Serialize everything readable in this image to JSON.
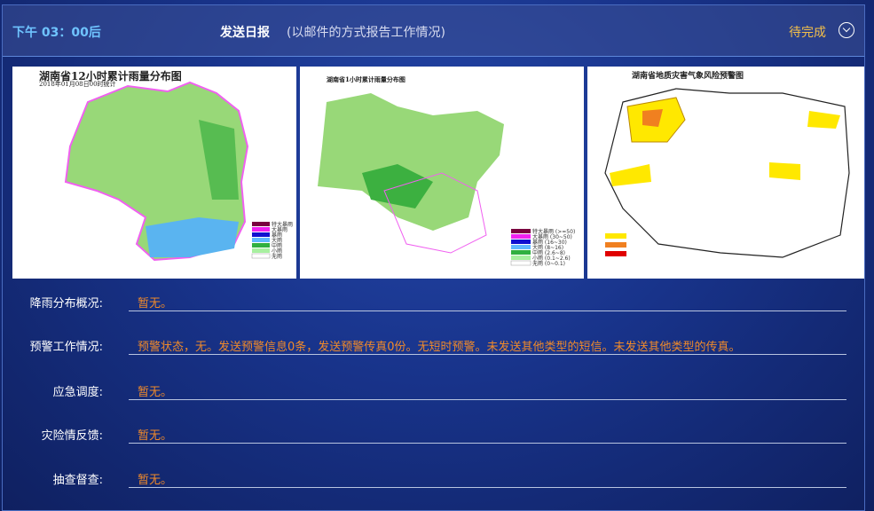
{
  "header": {
    "time": "下午 03：00后",
    "title": "发送日报",
    "subtitle": "(以邮件的方式报告工作情况)",
    "status": "待完成",
    "status_color": "#f4c04a"
  },
  "maps": [
    {
      "title": "湖南省12小时累计雨量分布图",
      "subtitle": "2018年01月08日00时统计",
      "legend": [
        "特大暴雨",
        "大暴雨",
        "暴雨",
        "大雨",
        "中雨",
        "小雨",
        "无雨"
      ]
    },
    {
      "title": "湖南省1小时累计雨量分布图",
      "legend": [
        "特大暴雨 (>=50)",
        "大暴雨 (30~50)",
        "暴雨 (16~30)",
        "大雨 (8~16)",
        "中雨 (2.6~8)",
        "小雨 (0.1~2.6)",
        "无雨 (0~0.1)"
      ]
    },
    {
      "title": "湖南省地质灾害气象风险预警图"
    }
  ],
  "rows": [
    {
      "label": "降雨分布概况:",
      "value": "暂无。"
    },
    {
      "label": "预警工作情况:",
      "value": "预警状态，无。发送预警信息0条，发送预警传真0份。无短时预警。未发送其他类型的短信。未发送其他类型的传真。"
    },
    {
      "label": "应急调度:",
      "value": "暂无。"
    },
    {
      "label": "灾险情反馈:",
      "value": "暂无。"
    },
    {
      "label": "抽查督查:",
      "value": "暂无。"
    }
  ]
}
